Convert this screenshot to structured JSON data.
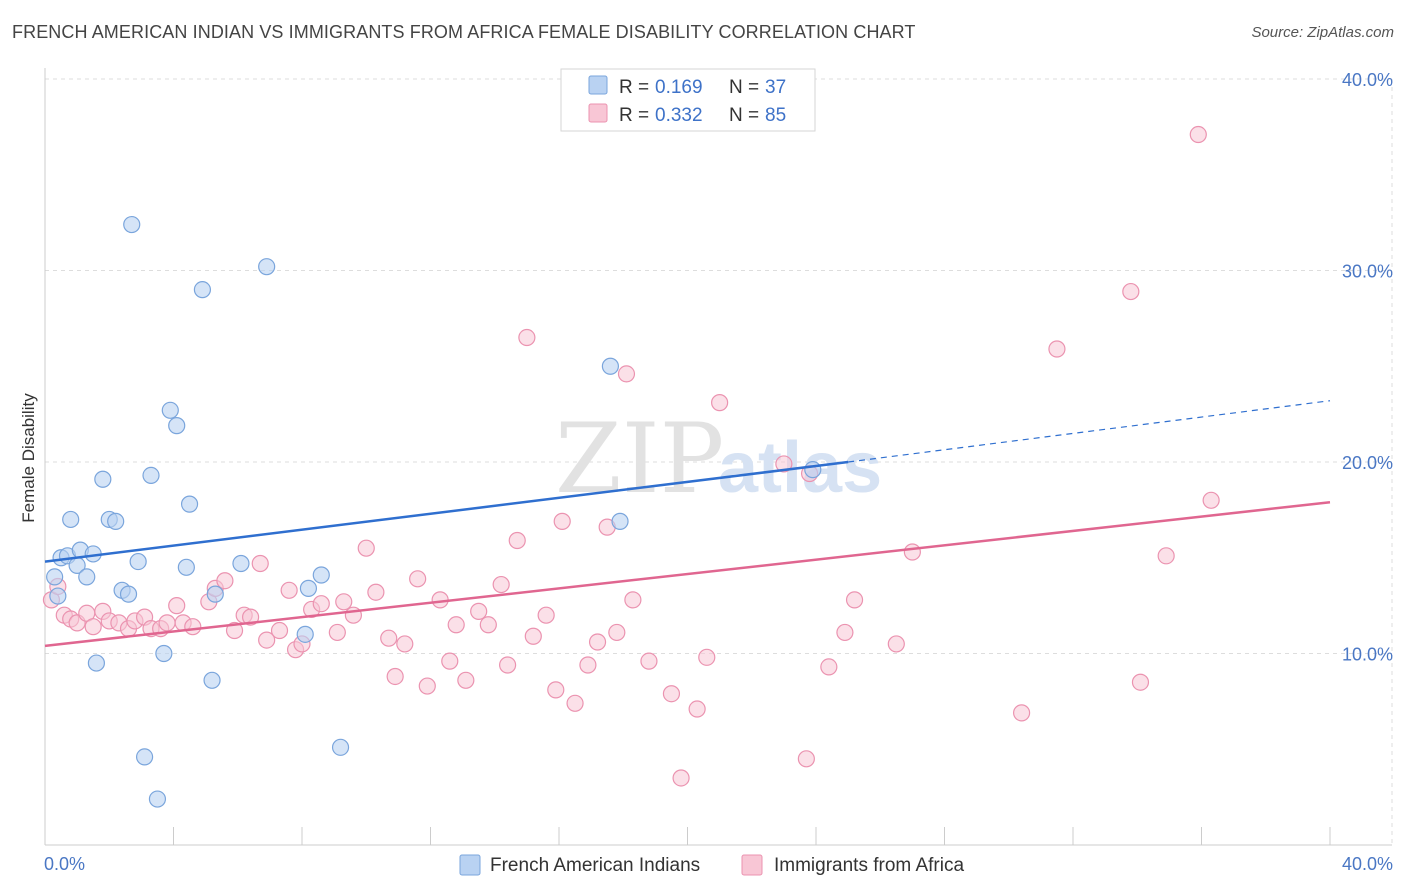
{
  "title": "FRENCH AMERICAN INDIAN VS IMMIGRANTS FROM AFRICA FEMALE DISABILITY CORRELATION CHART",
  "source": "Source: ZipAtlas.com",
  "watermark": {
    "zip": "ZIP",
    "atlas": "atlas"
  },
  "colors": {
    "blue_fill": "#b9d2f2",
    "blue_stroke": "#7aa5dc",
    "blue_line": "#2f6fcf",
    "pink_fill": "#f8c6d5",
    "pink_stroke": "#eb93b0",
    "pink_line": "#e06690",
    "grid": "#dddddd",
    "axis_text": "#4a77c4"
  },
  "legend": {
    "rows": [
      {
        "r_label": "R =",
        "r_value": "0.169",
        "n_label": "N =",
        "n_value": "37"
      },
      {
        "r_label": "R =",
        "r_value": "0.332",
        "n_label": "N =",
        "n_value": "85"
      }
    ]
  },
  "chart_data": {
    "type": "scatter",
    "title": "FRENCH AMERICAN INDIAN VS IMMIGRANTS FROM AFRICA FEMALE DISABILITY CORRELATION CHART",
    "xlabel": "",
    "ylabel": "Female Disability",
    "xlim": [
      0,
      40
    ],
    "ylim": [
      0,
      40
    ],
    "x_tick_labels": [
      "0.0%",
      "40.0%"
    ],
    "y_tick_labels": [
      "10.0%",
      "20.0%",
      "30.0%",
      "40.0%"
    ],
    "y_ticks": [
      10,
      20,
      30,
      40
    ],
    "grid": true,
    "legend_position": "top-center",
    "series": [
      {
        "name": "French American Indians",
        "R": 0.169,
        "N": 37,
        "trend": {
          "x_start": 0,
          "y_start": 14.8,
          "x_solid_end": 25,
          "y_solid_end": 20.0,
          "x_dash_end": 40,
          "y_dash_end": 23.2
        },
        "points": [
          [
            0.3,
            14.0
          ],
          [
            0.4,
            13.0
          ],
          [
            0.5,
            15.0
          ],
          [
            0.7,
            15.1
          ],
          [
            0.8,
            17.0
          ],
          [
            1.0,
            14.6
          ],
          [
            1.1,
            15.4
          ],
          [
            1.3,
            14.0
          ],
          [
            1.5,
            15.2
          ],
          [
            1.6,
            9.5
          ],
          [
            1.8,
            19.1
          ],
          [
            2.0,
            17.0
          ],
          [
            2.2,
            16.9
          ],
          [
            2.4,
            13.3
          ],
          [
            2.6,
            13.1
          ],
          [
            2.9,
            14.8
          ],
          [
            3.1,
            4.6
          ],
          [
            3.3,
            19.3
          ],
          [
            3.5,
            2.4
          ],
          [
            3.7,
            10.0
          ],
          [
            3.9,
            22.7
          ],
          [
            4.1,
            21.9
          ],
          [
            4.4,
            14.5
          ],
          [
            4.5,
            17.8
          ],
          [
            4.9,
            29.0
          ],
          [
            5.2,
            8.6
          ],
          [
            5.3,
            13.1
          ],
          [
            6.1,
            14.7
          ],
          [
            6.9,
            30.2
          ],
          [
            8.1,
            11.0
          ],
          [
            8.2,
            13.4
          ],
          [
            8.6,
            14.1
          ],
          [
            9.2,
            5.1
          ],
          [
            2.7,
            32.4
          ],
          [
            17.6,
            25.0
          ],
          [
            17.9,
            16.9
          ],
          [
            23.9,
            19.6
          ]
        ]
      },
      {
        "name": "Immigrants from Africa",
        "R": 0.332,
        "N": 85,
        "trend": {
          "x_start": 0,
          "y_start": 10.4,
          "x_end": 40,
          "y_end": 17.9
        },
        "points": [
          [
            0.2,
            12.8
          ],
          [
            0.4,
            13.5
          ],
          [
            0.6,
            12.0
          ],
          [
            0.8,
            11.8
          ],
          [
            1.0,
            11.6
          ],
          [
            1.3,
            12.1
          ],
          [
            1.5,
            11.4
          ],
          [
            1.8,
            12.2
          ],
          [
            2.0,
            11.7
          ],
          [
            2.3,
            11.6
          ],
          [
            2.6,
            11.3
          ],
          [
            2.8,
            11.7
          ],
          [
            3.1,
            11.9
          ],
          [
            3.3,
            11.3
          ],
          [
            3.6,
            11.3
          ],
          [
            3.8,
            11.6
          ],
          [
            4.1,
            12.5
          ],
          [
            4.3,
            11.6
          ],
          [
            4.6,
            11.4
          ],
          [
            5.1,
            12.7
          ],
          [
            5.3,
            13.4
          ],
          [
            5.6,
            13.8
          ],
          [
            5.9,
            11.2
          ],
          [
            6.2,
            12.0
          ],
          [
            6.4,
            11.9
          ],
          [
            6.7,
            14.7
          ],
          [
            6.9,
            10.7
          ],
          [
            7.3,
            11.2
          ],
          [
            7.6,
            13.3
          ],
          [
            7.8,
            10.2
          ],
          [
            8.0,
            10.5
          ],
          [
            8.3,
            12.3
          ],
          [
            8.6,
            12.6
          ],
          [
            9.1,
            11.1
          ],
          [
            9.3,
            12.7
          ],
          [
            9.6,
            12.0
          ],
          [
            10.0,
            15.5
          ],
          [
            10.3,
            13.2
          ],
          [
            10.7,
            10.8
          ],
          [
            10.9,
            8.8
          ],
          [
            11.2,
            10.5
          ],
          [
            11.6,
            13.9
          ],
          [
            11.9,
            8.3
          ],
          [
            12.3,
            12.8
          ],
          [
            12.6,
            9.6
          ],
          [
            12.8,
            11.5
          ],
          [
            13.1,
            8.6
          ],
          [
            13.5,
            12.2
          ],
          [
            13.8,
            11.5
          ],
          [
            14.2,
            13.6
          ],
          [
            14.4,
            9.4
          ],
          [
            14.7,
            15.9
          ],
          [
            15.0,
            26.5
          ],
          [
            15.2,
            10.9
          ],
          [
            15.6,
            12.0
          ],
          [
            15.9,
            8.1
          ],
          [
            16.1,
            16.9
          ],
          [
            16.5,
            7.4
          ],
          [
            16.9,
            9.4
          ],
          [
            17.2,
            10.6
          ],
          [
            17.5,
            16.6
          ],
          [
            17.8,
            11.1
          ],
          [
            18.1,
            24.6
          ],
          [
            18.3,
            12.8
          ],
          [
            18.8,
            9.6
          ],
          [
            19.5,
            7.9
          ],
          [
            19.8,
            3.5
          ],
          [
            20.3,
            7.1
          ],
          [
            20.6,
            9.8
          ],
          [
            21.0,
            23.1
          ],
          [
            23.0,
            19.9
          ],
          [
            23.7,
            4.5
          ],
          [
            23.8,
            19.4
          ],
          [
            24.4,
            9.3
          ],
          [
            24.9,
            11.1
          ],
          [
            25.2,
            12.8
          ],
          [
            26.5,
            10.5
          ],
          [
            27.0,
            15.3
          ],
          [
            30.4,
            6.9
          ],
          [
            31.5,
            25.9
          ],
          [
            33.8,
            28.9
          ],
          [
            34.1,
            8.5
          ],
          [
            34.9,
            15.1
          ],
          [
            35.9,
            37.1
          ],
          [
            36.3,
            18.0
          ]
        ]
      }
    ]
  },
  "bottom_legend": {
    "items": [
      "French American Indians",
      "Immigrants from Africa"
    ]
  }
}
